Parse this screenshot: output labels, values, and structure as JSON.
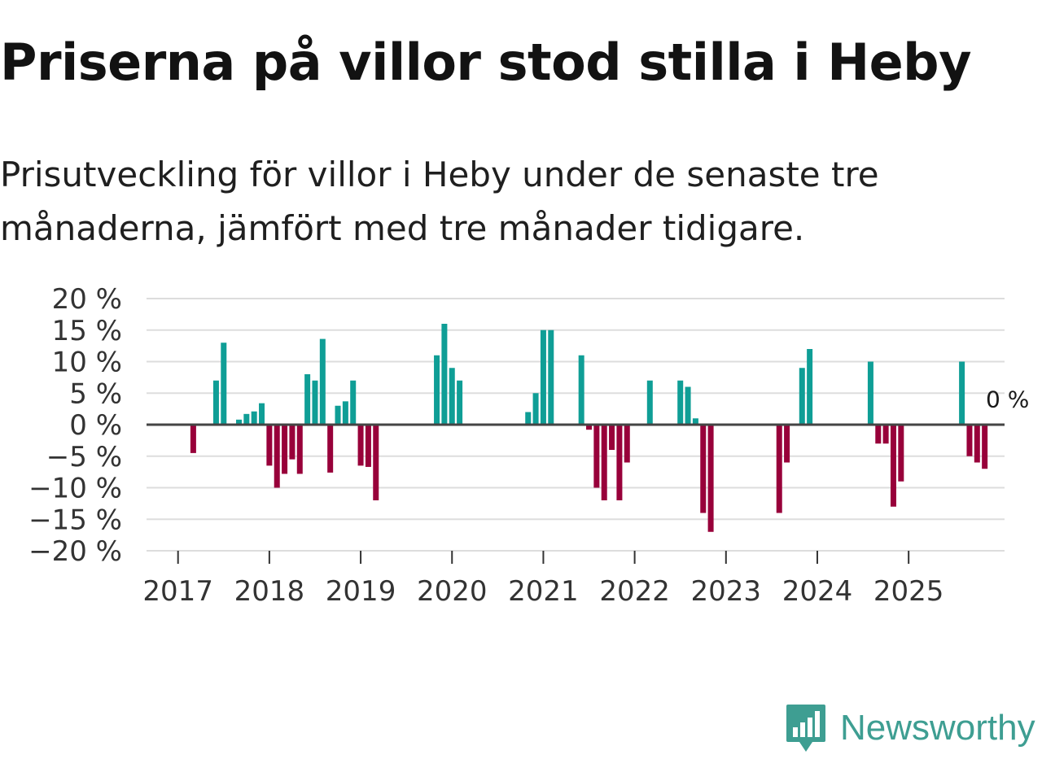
{
  "title": "Priserna på villor stod stilla i Heby",
  "subtitle": "Prisutveckling för villor i Heby under de senaste tre månaderna, jämfört med tre månader tidigare.",
  "logo": {
    "text": "Newsworthy",
    "icon": "newsworthy-logo-icon",
    "color": "#3e9e92"
  },
  "colors": {
    "positive": "#0f9e96",
    "negative": "#98003a",
    "zero_line": "#444444",
    "grid": "#dddddd"
  },
  "chart_data": {
    "type": "bar",
    "title": "",
    "xlabel": "",
    "ylabel": "",
    "ylim": [
      -20,
      20
    ],
    "y_ticks": [
      {
        "value": 20,
        "label": "20 %"
      },
      {
        "value": 15,
        "label": "15 %"
      },
      {
        "value": 10,
        "label": "10 %"
      },
      {
        "value": 5,
        "label": "5 %"
      },
      {
        "value": 0,
        "label": "0 %"
      },
      {
        "value": -5,
        "label": "−5 %"
      },
      {
        "value": -10,
        "label": "−10 %"
      },
      {
        "value": -15,
        "label": "−15 %"
      },
      {
        "value": -20,
        "label": "−20 %"
      }
    ],
    "x_start": "2016-11",
    "x_end": "2025-12",
    "x_ticks": [
      {
        "date": "2017-01",
        "label": "2017"
      },
      {
        "date": "2018-01",
        "label": "2018"
      },
      {
        "date": "2019-01",
        "label": "2019"
      },
      {
        "date": "2020-01",
        "label": "2020"
      },
      {
        "date": "2021-01",
        "label": "2021"
      },
      {
        "date": "2022-01",
        "label": "2022"
      },
      {
        "date": "2023-01",
        "label": "2023"
      },
      {
        "date": "2024-01",
        "label": "2024"
      },
      {
        "date": "2025-01",
        "label": "2025"
      }
    ],
    "series": [
      {
        "name": "Prisutveckling",
        "points": [
          {
            "date": "2017-03",
            "value": -4.5
          },
          {
            "date": "2017-06",
            "value": 7.0
          },
          {
            "date": "2017-07",
            "value": 13.0
          },
          {
            "date": "2017-09",
            "value": 0.8
          },
          {
            "date": "2017-10",
            "value": 1.7
          },
          {
            "date": "2017-11",
            "value": 2.1
          },
          {
            "date": "2017-12",
            "value": 3.4
          },
          {
            "date": "2018-01",
            "value": -6.5
          },
          {
            "date": "2018-02",
            "value": -10.0
          },
          {
            "date": "2018-03",
            "value": -7.8
          },
          {
            "date": "2018-04",
            "value": -5.5
          },
          {
            "date": "2018-05",
            "value": -7.8
          },
          {
            "date": "2018-06",
            "value": 8.0
          },
          {
            "date": "2018-07",
            "value": 7.0
          },
          {
            "date": "2018-08",
            "value": 13.6
          },
          {
            "date": "2018-09",
            "value": -7.6
          },
          {
            "date": "2018-10",
            "value": 3.0
          },
          {
            "date": "2018-11",
            "value": 3.7
          },
          {
            "date": "2018-12",
            "value": 7.0
          },
          {
            "date": "2019-01",
            "value": -6.5
          },
          {
            "date": "2019-02",
            "value": -6.7
          },
          {
            "date": "2019-03",
            "value": -12.0
          },
          {
            "date": "2019-11",
            "value": 11.0
          },
          {
            "date": "2019-12",
            "value": 16.0
          },
          {
            "date": "2020-01",
            "value": 9.0
          },
          {
            "date": "2020-02",
            "value": 7.0
          },
          {
            "date": "2020-11",
            "value": 2.0
          },
          {
            "date": "2020-12",
            "value": 5.0
          },
          {
            "date": "2021-01",
            "value": 15.0
          },
          {
            "date": "2021-02",
            "value": 15.0
          },
          {
            "date": "2021-06",
            "value": 11.0
          },
          {
            "date": "2021-07",
            "value": -0.8
          },
          {
            "date": "2021-08",
            "value": -10.0
          },
          {
            "date": "2021-09",
            "value": -12.0
          },
          {
            "date": "2021-10",
            "value": -4.0
          },
          {
            "date": "2021-11",
            "value": -12.0
          },
          {
            "date": "2021-12",
            "value": -6.0
          },
          {
            "date": "2022-03",
            "value": 7.0
          },
          {
            "date": "2022-07",
            "value": 7.0
          },
          {
            "date": "2022-08",
            "value": 6.0
          },
          {
            "date": "2022-09",
            "value": 1.0
          },
          {
            "date": "2022-10",
            "value": -14.0
          },
          {
            "date": "2022-11",
            "value": -17.0
          },
          {
            "date": "2023-08",
            "value": -14.0
          },
          {
            "date": "2023-09",
            "value": -6.0
          },
          {
            "date": "2023-11",
            "value": 9.0
          },
          {
            "date": "2023-12",
            "value": 12.0
          },
          {
            "date": "2024-08",
            "value": 10.0
          },
          {
            "date": "2024-09",
            "value": -3.0
          },
          {
            "date": "2024-10",
            "value": -3.0
          },
          {
            "date": "2024-11",
            "value": -13.0
          },
          {
            "date": "2024-12",
            "value": -9.0
          },
          {
            "date": "2025-08",
            "value": 10.0
          },
          {
            "date": "2025-09",
            "value": -5.0
          },
          {
            "date": "2025-10",
            "value": -6.0
          },
          {
            "date": "2025-11",
            "value": -7.0
          },
          {
            "date": "2025-12",
            "value": 0.0
          }
        ]
      }
    ],
    "annotations": [
      {
        "date": "2025-12",
        "value": 0,
        "text": "0 %"
      }
    ]
  }
}
